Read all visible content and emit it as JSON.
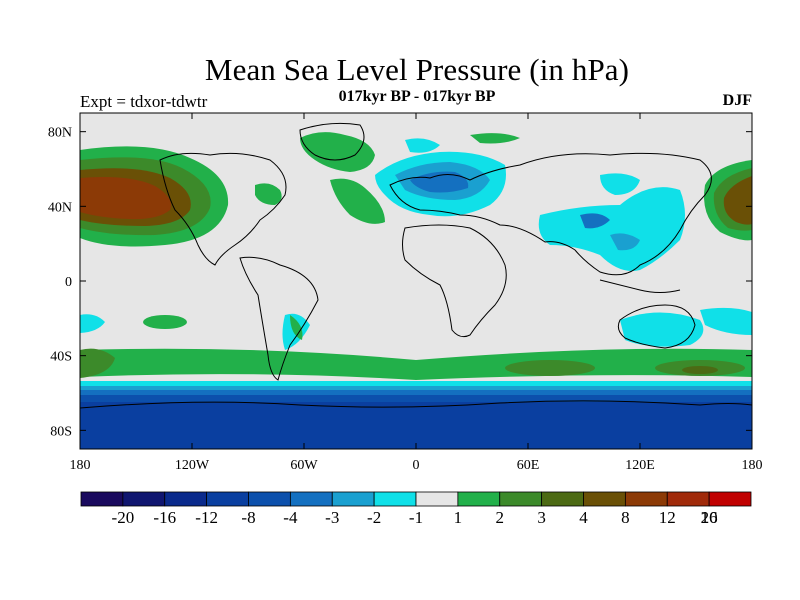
{
  "title": "Mean Sea Level Pressure (in hPa)",
  "subtitle": "017kyr BP - 017kyr BP",
  "experiment": "Expt = tdxor-tdwtr",
  "season": "DJF",
  "axes": {
    "x_ticks": [
      "180",
      "120W",
      "60W",
      "0",
      "60E",
      "120E",
      "180"
    ],
    "y_ticks": [
      "80N",
      "40N",
      "0",
      "40S",
      "80S"
    ]
  },
  "colorbar": {
    "labels": [
      "-20",
      "-16",
      "-12",
      "-8",
      "-4",
      "-3",
      "-2",
      "-1",
      "1",
      "2",
      "3",
      "4",
      "8",
      "12",
      "16",
      "20"
    ],
    "colors": [
      "#1a0a5e",
      "#101670",
      "#0a2a8c",
      "#0a3fa0",
      "#0c50ac",
      "#1470c0",
      "#1aa0d0",
      "#10e0e8",
      "#e6e6e6",
      "#22b04a",
      "#3c8a2a",
      "#4c6a14",
      "#6a5006",
      "#8c3a06",
      "#a02a0a",
      "#c00000"
    ]
  },
  "colors": {
    "neutral": "#e6e6e6",
    "pos_1": "#22b04a",
    "pos_2": "#3c8a2a",
    "pos_4": "#6a5006",
    "pos_8": "#8c3a06",
    "neg_1": "#10e0e8",
    "neg_2": "#1aa0d0",
    "neg_3": "#1470c0",
    "neg_4": "#0c50ac",
    "neg_8": "#0a3fa0"
  }
}
